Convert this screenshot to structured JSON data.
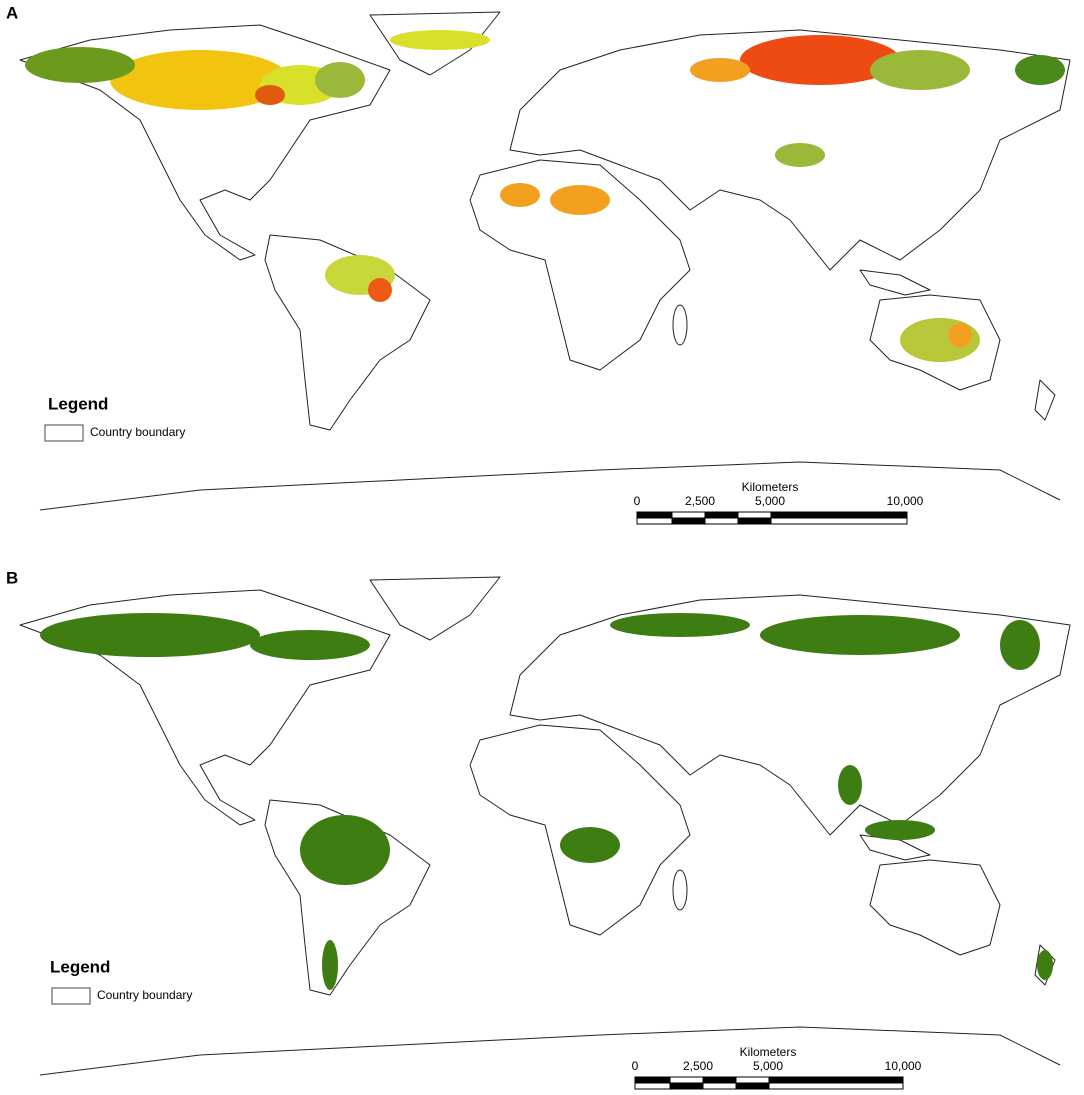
{
  "panels": [
    {
      "label": "A",
      "legend": {
        "title": "Legend",
        "item": "Country boundary"
      },
      "scale": {
        "title": "Kilometers",
        "labels": [
          "0",
          "2,500",
          "5,000",
          "10,000"
        ]
      }
    },
    {
      "label": "B",
      "legend": {
        "title": "Legend",
        "item": "Country boundary"
      },
      "scale": {
        "title": "Kilometers",
        "labels": [
          "0",
          "2,500",
          "5,000",
          "10,000"
        ]
      }
    }
  ]
}
